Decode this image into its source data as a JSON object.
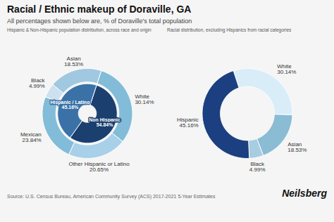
{
  "title": "Racial / Ethnic makeup of Doraville, GA",
  "subtitle": "All percentages shown below are, % of Doraville's total population",
  "source": "Source: U.S. Census Bureau, American Community Survey (ACS) 2017-2021 5-Year Estimates",
  "annotations": [
    "Neilsberg"
  ],
  "chart_data": [
    {
      "type": "donut",
      "title": "Hispanic & Non-Hispanic population distribution, across race and origin",
      "data_labels": true,
      "series": [
        {
          "categories": [
            "Non Hispanic",
            "Hispanic / Latino"
          ],
          "values": [
            54.84,
            45.16
          ],
          "value_labels": [
            "54.84%",
            "45.16%"
          ],
          "colors": [
            "#1b3f6e",
            "#3a72a8"
          ]
        },
        {
          "categories": [
            "White",
            "Other Hispanic or Latino",
            "Mexican",
            "Black",
            "Asian"
          ],
          "values": [
            30.14,
            20.65,
            23.84,
            4.99,
            18.53
          ],
          "value_labels": [
            "30.14%",
            "20.65%",
            "23.84%",
            "4.99%",
            "18.53%"
          ],
          "colors": [
            "#82bcd8",
            "#a8d0e8",
            "#82bcd8",
            "#cce0ef",
            "#a0c8e0"
          ]
        }
      ]
    },
    {
      "type": "donut",
      "title": "Racial distribution, excluding Hispanics from racial categories",
      "data_labels": true,
      "series": [
        {
          "categories": [
            "White",
            "Asian",
            "Black",
            "Hispanic"
          ],
          "values": [
            30.14,
            18.53,
            4.99,
            45.16
          ],
          "value_labels": [
            "30.14%",
            "18.53%",
            "4.99%",
            "45.16%"
          ],
          "colors": [
            "#d8edf8",
            "#8abcd4",
            "#a8cce0",
            "#1b3f80"
          ]
        }
      ]
    }
  ]
}
